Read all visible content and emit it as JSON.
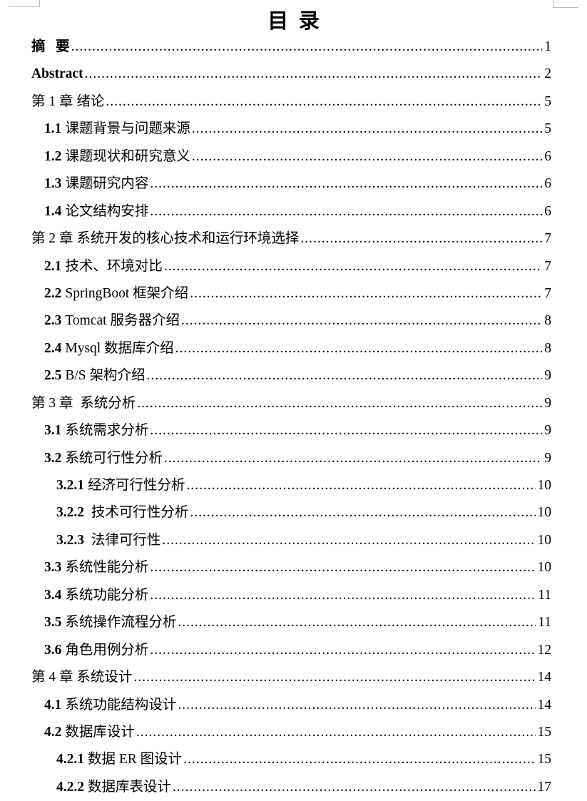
{
  "page": {
    "title": "目  录",
    "toc": {
      "entries": [
        {
          "level": 0,
          "num": "",
          "label": "摘   要",
          "page": "1",
          "bold": true
        },
        {
          "level": 0,
          "num": "",
          "label": "Abstract",
          "page": "2",
          "bold": true
        },
        {
          "level": 0,
          "num": "",
          "label": "第 1 章 绪论",
          "page": "5",
          "bold": false
        },
        {
          "level": 1,
          "num": "1.1",
          "label": "课题背景与问题来源",
          "page": "5",
          "bold": false
        },
        {
          "level": 1,
          "num": "1.2",
          "label": "课题现状和研究意义",
          "page": "6",
          "bold": false
        },
        {
          "level": 1,
          "num": "1.3",
          "label": "课题研究内容",
          "page": "6",
          "bold": false
        },
        {
          "level": 1,
          "num": "1.4",
          "label": "论文结构安排",
          "page": "6",
          "bold": false
        },
        {
          "level": 0,
          "num": "",
          "label": "第 2 章 系统开发的核心技术和运行环境选择",
          "page": "7",
          "bold": false
        },
        {
          "level": 1,
          "num": "2.1",
          "label": "技术、环境对比",
          "page": "7",
          "bold": false
        },
        {
          "level": 1,
          "num": "2.2",
          "label": "SpringBoot 框架介绍",
          "page": "7",
          "bold": false
        },
        {
          "level": 1,
          "num": "2.3",
          "label": "Tomcat 服务器介绍",
          "page": "8",
          "bold": false
        },
        {
          "level": 1,
          "num": "2.4",
          "label": "Mysql 数据库介绍",
          "page": "8",
          "bold": false
        },
        {
          "level": 1,
          "num": "2.5",
          "label": "B/S 架构介绍",
          "page": "9",
          "bold": false
        },
        {
          "level": 0,
          "num": "",
          "label": "第 3 章  系统分析",
          "page": "9",
          "bold": false
        },
        {
          "level": 1,
          "num": "3.1",
          "label": "系统需求分析",
          "page": "9",
          "bold": false
        },
        {
          "level": 1,
          "num": "3.2",
          "label": "系统可行性分析",
          "page": "9",
          "bold": false
        },
        {
          "level": 2,
          "num": "3.2.1",
          "label": "经济可行性分析",
          "page": "10",
          "bold": false
        },
        {
          "level": 2,
          "num": "3.2.2",
          "label": " 技术可行性分析",
          "page": "10",
          "bold": false
        },
        {
          "level": 2,
          "num": "3.2.3",
          "label": " 法律可行性",
          "page": "10",
          "bold": false
        },
        {
          "level": 1,
          "num": "3.3",
          "label": "系统性能分析",
          "page": "10",
          "bold": false
        },
        {
          "level": 1,
          "num": "3.4",
          "label": "系统功能分析",
          "page": "11",
          "bold": false
        },
        {
          "level": 1,
          "num": "3.5",
          "label": "系统操作流程分析",
          "page": "11",
          "bold": false
        },
        {
          "level": 1,
          "num": "3.6",
          "label": "角色用例分析",
          "page": "12",
          "bold": false
        },
        {
          "level": 0,
          "num": "",
          "label": "第 4 章 系统设计",
          "page": "14",
          "bold": false
        },
        {
          "level": 1,
          "num": "4.1",
          "label": "系统功能结构设计",
          "page": "14",
          "bold": false
        },
        {
          "level": 1,
          "num": "4.2",
          "label": "数据库设计",
          "page": "15",
          "bold": false
        },
        {
          "level": 2,
          "num": "4.2.1",
          "label": "数据 ER 图设计",
          "page": "15",
          "bold": false
        },
        {
          "level": 2,
          "num": "4.2.2",
          "label": "数据库表设计",
          "page": "17",
          "bold": false
        }
      ]
    }
  }
}
